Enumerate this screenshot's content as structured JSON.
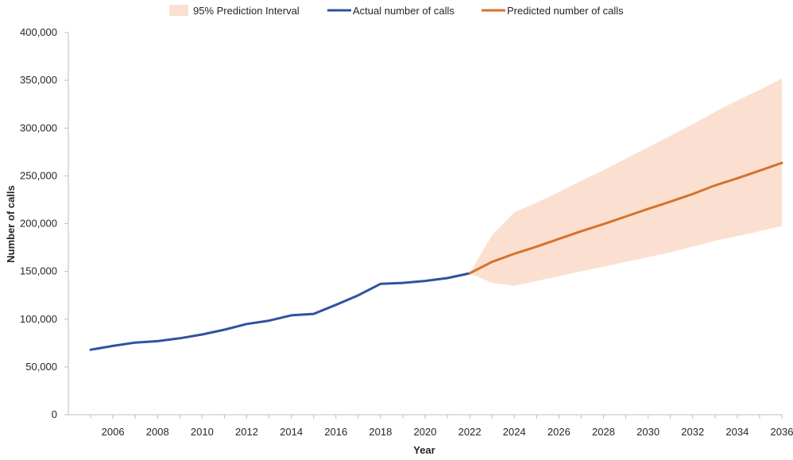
{
  "chart_data": {
    "type": "line",
    "title": "",
    "xlabel": "Year",
    "ylabel": "Number of calls",
    "xlim": [
      2004,
      2036
    ],
    "ylim": [
      0,
      400000
    ],
    "x_ticks": [
      2006,
      2008,
      2010,
      2012,
      2014,
      2016,
      2018,
      2020,
      2022,
      2024,
      2026,
      2028,
      2030,
      2032,
      2034,
      2036
    ],
    "y_ticks": [
      0,
      50000,
      100000,
      150000,
      200000,
      250000,
      300000,
      350000,
      400000
    ],
    "y_tick_labels": [
      "0",
      "50,000",
      "100,000",
      "150,000",
      "200,000",
      "250,000",
      "300,000",
      "350,000",
      "400,000"
    ],
    "grid": false,
    "legend_position": "top",
    "series": [
      {
        "name": "Actual number of calls",
        "color": "#2f52a0",
        "x": [
          2005,
          2006,
          2007,
          2008,
          2009,
          2010,
          2011,
          2012,
          2013,
          2014,
          2015,
          2016,
          2017,
          2018,
          2019,
          2020,
          2021,
          2022
        ],
        "values": [
          68000,
          72000,
          75500,
          77000,
          80000,
          84000,
          89000,
          95000,
          98500,
          104000,
          105500,
          115000,
          125000,
          137000,
          138000,
          140000,
          143000,
          148000
        ]
      },
      {
        "name": "Predicted number of calls",
        "color": "#d8722a",
        "x": [
          2022,
          2023,
          2024,
          2025,
          2026,
          2027,
          2028,
          2029,
          2030,
          2031,
          2032,
          2033,
          2034,
          2035,
          2036
        ],
        "values": [
          148000,
          160000,
          168500,
          176000,
          184000,
          192000,
          199500,
          207500,
          215500,
          223000,
          231000,
          240000,
          247500,
          255500,
          263500
        ]
      }
    ],
    "interval": {
      "name": "95% Prediction Interval",
      "color": "#fbe0d1",
      "x": [
        2022,
        2023,
        2024,
        2025,
        2026,
        2027,
        2028,
        2029,
        2030,
        2031,
        2032,
        2033,
        2034,
        2035,
        2036
      ],
      "lower": [
        148000,
        138000,
        135000,
        140000,
        145000,
        150000,
        155000,
        160000,
        165000,
        170000,
        176000,
        182000,
        187000,
        192000,
        197500
      ],
      "upper": [
        148000,
        188000,
        212000,
        222000,
        233000,
        245000,
        256000,
        268000,
        280000,
        292000,
        304000,
        317000,
        329000,
        340000,
        352000
      ]
    }
  }
}
